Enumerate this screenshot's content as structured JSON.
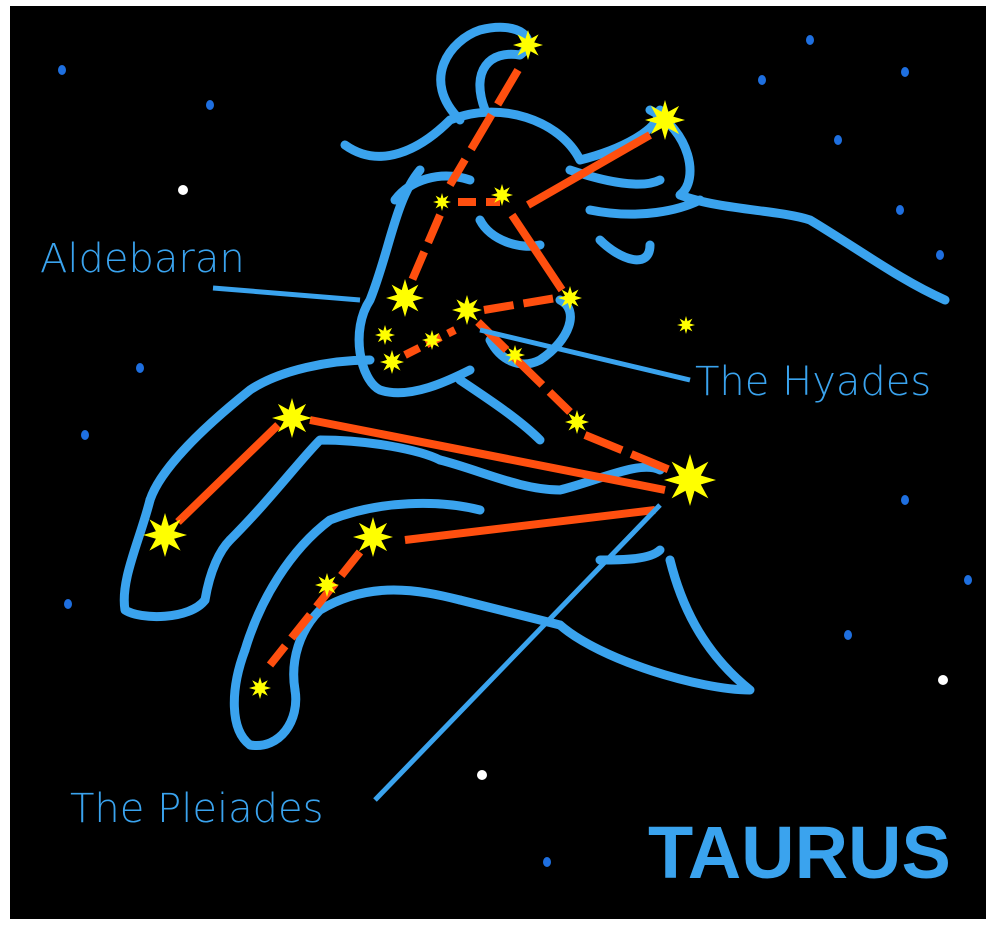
{
  "title": "TAURUS",
  "labels": {
    "aldebaran": "Aldebaran",
    "hyades": "The Hyades",
    "pleiades": "The Pleiades"
  }
}
